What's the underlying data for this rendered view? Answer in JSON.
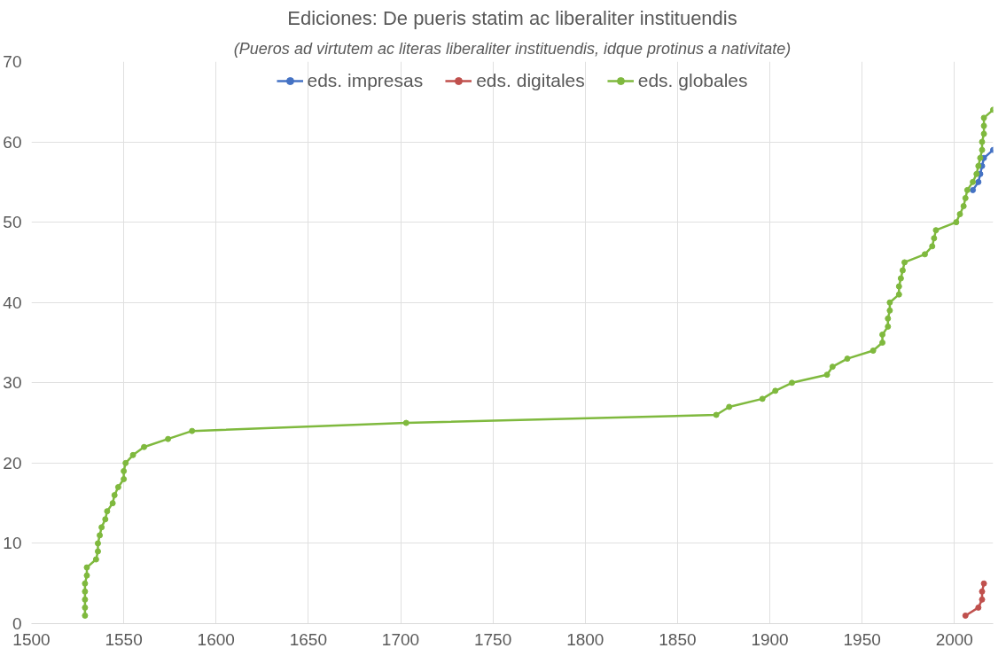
{
  "chart_data": {
    "type": "line",
    "title": "Ediciones: De pueris statim ac liberaliter instituendis",
    "subtitle": "(Pueros ad virtutem ac literas liberaliter instituendis, idque protinus a nativitate)",
    "series": [
      {
        "name": "eds. impresas",
        "color": "#4472c4",
        "x": [
          2010,
          2013,
          2014,
          2015,
          2016,
          2021
        ],
        "values": [
          54,
          55,
          56,
          57,
          58,
          59
        ]
      },
      {
        "name": "eds. digitales",
        "color": "#c0504d",
        "x": [
          2006,
          2013,
          2015,
          2015,
          2016
        ],
        "values": [
          1,
          2,
          3,
          4,
          5
        ]
      },
      {
        "name": "eds. globales",
        "color": "#7fb93e",
        "x": [
          1529,
          1529,
          1529,
          1529,
          1529,
          1530,
          1530,
          1535,
          1536,
          1536,
          1537,
          1538,
          1540,
          1541,
          1544,
          1545,
          1547,
          1550,
          1550,
          1551,
          1555,
          1561,
          1574,
          1587,
          1703,
          1871,
          1878,
          1896,
          1903,
          1912,
          1931,
          1934,
          1942,
          1956,
          1961,
          1961,
          1964,
          1964,
          1965,
          1965,
          1970,
          1970,
          1971,
          1972,
          1973,
          1984,
          1988,
          1989,
          1990,
          2001,
          2003,
          2005,
          2006,
          2007,
          2010,
          2012,
          2013,
          2014,
          2015,
          2015,
          2016,
          2016,
          2016,
          2021
        ],
        "values": [
          1,
          2,
          3,
          4,
          5,
          6,
          7,
          8,
          9,
          10,
          11,
          12,
          13,
          14,
          15,
          16,
          17,
          18,
          19,
          20,
          21,
          22,
          23,
          24,
          25,
          26,
          27,
          28,
          29,
          30,
          31,
          32,
          33,
          34,
          35,
          36,
          37,
          38,
          39,
          40,
          41,
          42,
          43,
          44,
          45,
          46,
          47,
          48,
          49,
          50,
          51,
          52,
          53,
          54,
          55,
          56,
          57,
          58,
          59,
          60,
          61,
          62,
          63,
          64
        ]
      }
    ],
    "xlim": [
      1500,
      2021
    ],
    "ylim": [
      0,
      70
    ],
    "xticks": [
      1500,
      1550,
      1600,
      1650,
      1700,
      1750,
      1800,
      1850,
      1900,
      1950,
      2000
    ],
    "yticks": [
      0,
      10,
      20,
      30,
      40,
      50,
      60,
      70
    ],
    "grid": true,
    "legend": "top",
    "marker": "circle",
    "line_style": "solid"
  }
}
